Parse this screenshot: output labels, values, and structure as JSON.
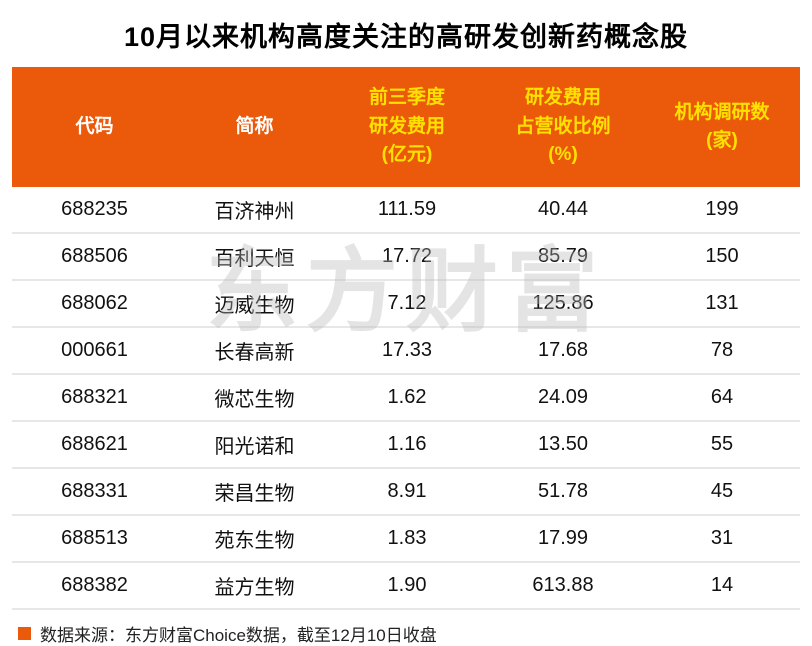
{
  "title": "10月以来机构高度关注的高研发创新药概念股",
  "watermark": "东方财富",
  "colors": {
    "header_bg": "#EB5A0A",
    "header_text": "#FFFFFF",
    "header_text_highlight": "#FFE100",
    "row_divider": "#E7E7E7",
    "body_text": "#111111",
    "footer_bullet": "#EB5A0A"
  },
  "header_display": [
    "代码",
    "简称",
    "前三季度\n研发费用\n(亿元)",
    "研发费用\n占营收比例\n(%)",
    "机构调研数\n(家)"
  ],
  "chart_data": {
    "type": "table",
    "title": "10月以来机构高度关注的高研发创新药概念股",
    "columns": [
      "代码",
      "简称",
      "前三季度研发费用(亿元)",
      "研发费用占营收比例(%)",
      "机构调研数(家)"
    ],
    "rows": [
      [
        "688235",
        "百济神州",
        "111.59",
        "40.44",
        "199"
      ],
      [
        "688506",
        "百利天恒",
        "17.72",
        "85.79",
        "150"
      ],
      [
        "688062",
        "迈威生物",
        "7.12",
        "125.86",
        "131"
      ],
      [
        "000661",
        "长春高新",
        "17.33",
        "17.68",
        "78"
      ],
      [
        "688321",
        "微芯生物",
        "1.62",
        "24.09",
        "64"
      ],
      [
        "688621",
        "阳光诺和",
        "1.16",
        "13.50",
        "55"
      ],
      [
        "688331",
        "荣昌生物",
        "8.91",
        "51.78",
        "45"
      ],
      [
        "688513",
        "苑东生物",
        "1.83",
        "17.99",
        "31"
      ],
      [
        "688382",
        "益方生物",
        "1.90",
        "613.88",
        "14"
      ]
    ]
  },
  "footer": {
    "text": "数据来源：东方财富Choice数据，截至12月10日收盘"
  }
}
